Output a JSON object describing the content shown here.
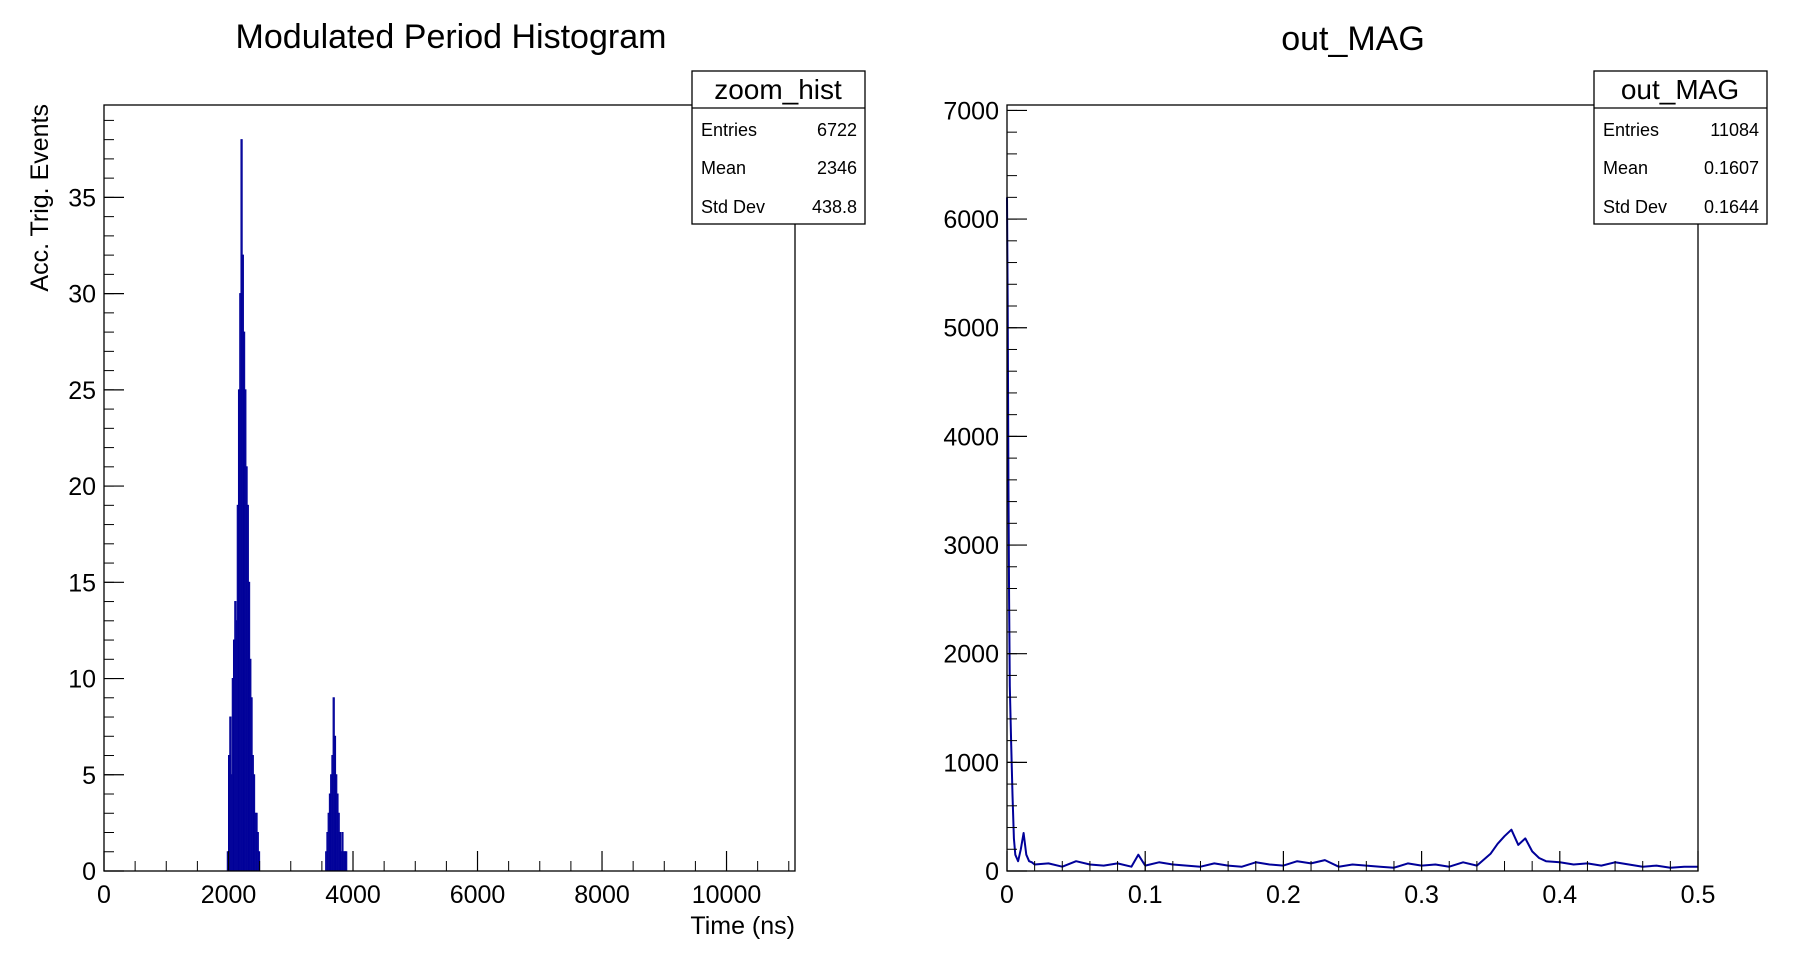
{
  "chart_data": [
    {
      "type": "bar",
      "title": "Modulated Period Histogram",
      "xlabel": "Time (ns)",
      "ylabel": "Acc. Trig. Events",
      "xlim": [
        0,
        11100
      ],
      "ylim": [
        0,
        39.8
      ],
      "xticks": [
        "0",
        "2000",
        "4000",
        "6000",
        "8000",
        "10000"
      ],
      "yticks": [
        "0",
        "5",
        "10",
        "15",
        "20",
        "25",
        "30",
        "35"
      ],
      "color": "#000099",
      "stats": {
        "name": "zoom_hist",
        "rows": [
          {
            "label": "Entries",
            "value": "6722"
          },
          {
            "label": "Mean",
            "value": "2346"
          },
          {
            "label": "Std Dev",
            "value": "438.8"
          }
        ]
      },
      "bins": {
        "x": [
          1990,
          2010,
          2030,
          2050,
          2070,
          2090,
          2110,
          2130,
          2150,
          2170,
          2190,
          2210,
          2230,
          2250,
          2270,
          2290,
          2310,
          2330,
          2350,
          2370,
          2390,
          2410,
          2430,
          2450,
          2470,
          2490,
          3570,
          3590,
          3610,
          3630,
          3650,
          3670,
          3690,
          3710,
          3730,
          3750,
          3770,
          3790,
          3810,
          3830,
          3850,
          3870,
          3890
        ],
        "values": [
          1,
          6,
          8,
          5,
          10,
          12,
          14,
          13,
          19,
          25,
          30,
          38,
          32,
          28,
          25,
          21,
          19,
          15,
          11,
          9,
          6,
          5,
          3,
          3,
          2,
          1,
          1,
          2,
          3,
          4,
          5,
          6,
          9,
          7,
          5,
          4,
          3,
          2,
          1,
          2,
          1,
          1,
          1
        ]
      }
    },
    {
      "type": "line",
      "title": "out_MAG",
      "xlabel": "",
      "ylabel": "",
      "xlim": [
        0,
        0.5
      ],
      "ylim": [
        0,
        7050
      ],
      "xticks": [
        "0",
        "0.1",
        "0.2",
        "0.3",
        "0.4",
        "0.5"
      ],
      "yticks": [
        "0",
        "1000",
        "2000",
        "3000",
        "4000",
        "5000",
        "6000",
        "7000"
      ],
      "color": "#000099",
      "stats": {
        "name": "out_MAG",
        "rows": [
          {
            "label": "Entries",
            "value": "11084"
          },
          {
            "label": "Mean",
            "value": "0.1607"
          },
          {
            "label": "Std Dev",
            "value": "0.1644"
          }
        ]
      },
      "series": {
        "x": [
          0.0,
          0.0005,
          0.001,
          0.0015,
          0.002,
          0.003,
          0.004,
          0.005,
          0.006,
          0.007,
          0.008,
          0.01,
          0.012,
          0.014,
          0.016,
          0.018,
          0.02,
          0.03,
          0.04,
          0.05,
          0.06,
          0.07,
          0.08,
          0.09,
          0.095,
          0.1,
          0.11,
          0.12,
          0.13,
          0.14,
          0.15,
          0.16,
          0.17,
          0.18,
          0.19,
          0.2,
          0.21,
          0.22,
          0.23,
          0.24,
          0.25,
          0.26,
          0.27,
          0.28,
          0.29,
          0.3,
          0.31,
          0.32,
          0.33,
          0.34,
          0.35,
          0.355,
          0.36,
          0.365,
          0.37,
          0.375,
          0.38,
          0.385,
          0.39,
          0.4,
          0.41,
          0.42,
          0.43,
          0.44,
          0.45,
          0.46,
          0.47,
          0.48,
          0.49,
          0.5
        ],
        "y": [
          6200,
          5200,
          3600,
          2500,
          1700,
          1200,
          700,
          300,
          150,
          120,
          90,
          200,
          350,
          150,
          90,
          80,
          60,
          70,
          40,
          90,
          60,
          50,
          70,
          40,
          150,
          50,
          80,
          60,
          50,
          40,
          70,
          50,
          40,
          80,
          60,
          50,
          90,
          70,
          100,
          40,
          60,
          50,
          40,
          30,
          70,
          50,
          60,
          40,
          80,
          50,
          160,
          250,
          320,
          380,
          240,
          300,
          180,
          120,
          90,
          80,
          60,
          70,
          50,
          80,
          60,
          40,
          50,
          30,
          40,
          40
        ]
      }
    }
  ]
}
